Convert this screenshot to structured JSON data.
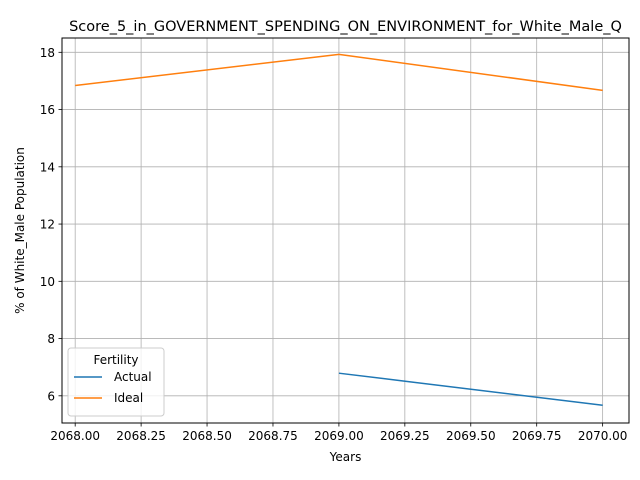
{
  "chart_data": {
    "type": "line",
    "title": "Score_5_in_GOVERNMENT_SPENDING_ON_ENVIRONMENT_for_White_Male_Q",
    "xlabel": "Years",
    "ylabel": "% of White_Male Population",
    "xlim": [
      2067.95,
      2070.1
    ],
    "ylim": [
      5.05,
      18.5
    ],
    "xticks": [
      "2068.00",
      "2068.25",
      "2068.50",
      "2068.75",
      "2069.00",
      "2069.25",
      "2069.50",
      "2069.75",
      "2070.00"
    ],
    "yticks": [
      "6",
      "8",
      "10",
      "12",
      "14",
      "16",
      "18"
    ],
    "grid": true,
    "legend": {
      "title": "Fertility",
      "placement": "lower-left"
    },
    "series": [
      {
        "name": "Actual",
        "color": "#1f77b4",
        "points": [
          [
            2069.0,
            6.79
          ],
          [
            2070.0,
            5.67
          ]
        ]
      },
      {
        "name": "Ideal",
        "color": "#ff7f0e",
        "points": [
          [
            2068.0,
            16.84
          ],
          [
            2069.0,
            17.93
          ],
          [
            2070.0,
            16.67
          ]
        ]
      }
    ]
  }
}
